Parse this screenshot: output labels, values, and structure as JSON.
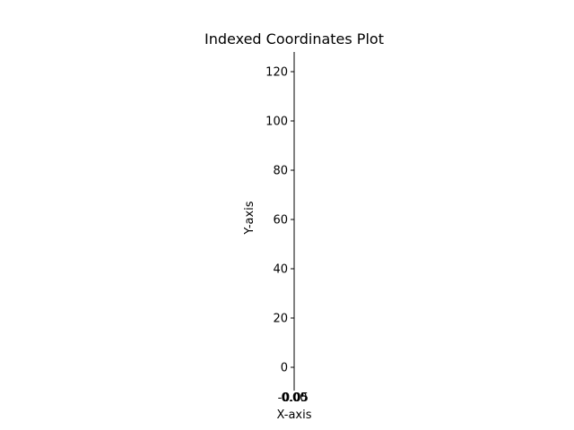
{
  "chart_data": {
    "type": "scatter",
    "title": "Indexed Coordinates Plot",
    "xlabel": "X-axis",
    "ylabel": "Y-axis",
    "x_ticks": [
      "-0.05",
      "0.00",
      "0.05"
    ],
    "y_ticks": [
      "0",
      "20",
      "40",
      "60",
      "80",
      "100",
      "120"
    ],
    "xlim": [
      -0.05,
      0.05
    ],
    "ylim": [
      -8,
      128
    ],
    "grid": false,
    "points": []
  }
}
